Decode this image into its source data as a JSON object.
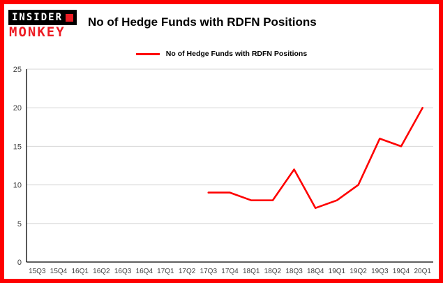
{
  "header": {
    "logo": {
      "line1": "INSIDER",
      "line2": "MONKEY"
    },
    "title": "No of Hedge Funds with RDFN Positions"
  },
  "legend": {
    "label": "No of Hedge Funds with RDFN Positions",
    "color": "#fe0000"
  },
  "colors": {
    "frame_border": "#fe0000",
    "grid": "#d6d6d6",
    "axis": "#000000",
    "series_line": "#fe0000",
    "tick_text": "#404040"
  },
  "chart_data": {
    "type": "line",
    "title": "No of Hedge Funds with RDFN Positions",
    "categories": [
      "15Q3",
      "15Q4",
      "16Q1",
      "16Q2",
      "16Q3",
      "16Q4",
      "17Q1",
      "17Q2",
      "17Q3",
      "17Q4",
      "18Q1",
      "18Q2",
      "18Q3",
      "18Q4",
      "19Q1",
      "19Q2",
      "19Q3",
      "19Q4",
      "20Q1"
    ],
    "series": [
      {
        "name": "No of Hedge Funds with RDFN Positions",
        "color": "#fe0000",
        "values": [
          null,
          null,
          null,
          null,
          null,
          null,
          null,
          null,
          9,
          9,
          8,
          8,
          12,
          7,
          8,
          10,
          16,
          15,
          20
        ]
      }
    ],
    "xlabel": "",
    "ylabel": "",
    "ylim": [
      0,
      25
    ],
    "yticks": [
      0,
      5,
      10,
      15,
      20,
      25
    ],
    "grid": true,
    "legend_position": "top-center"
  }
}
